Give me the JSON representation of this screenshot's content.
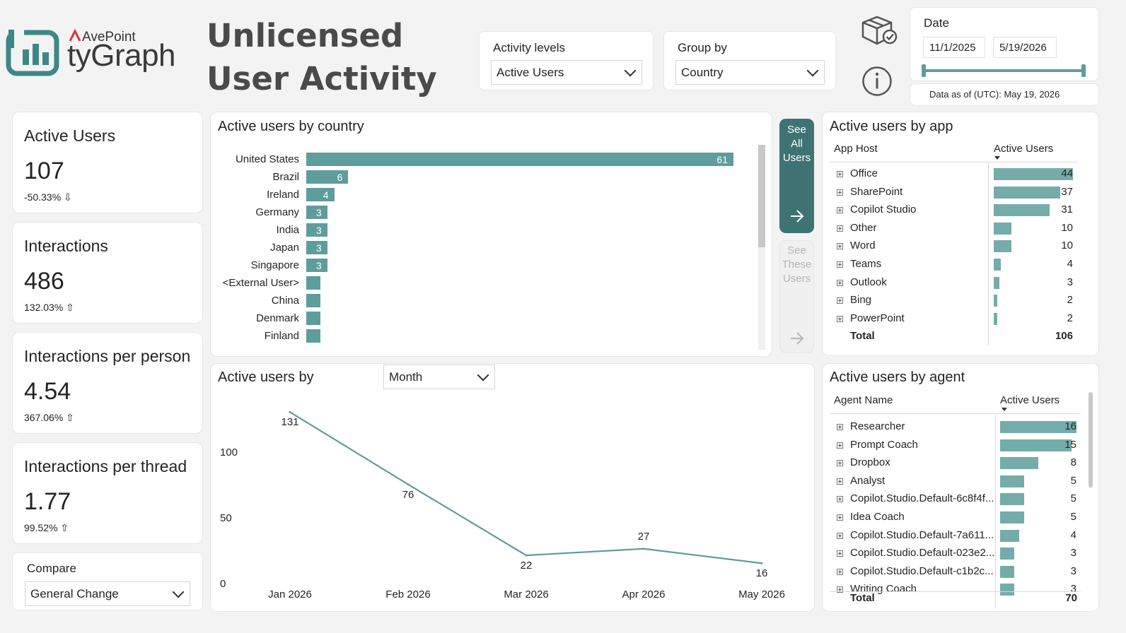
{
  "header": {
    "brand_top": "AvePoint",
    "brand_main": "tyGraph",
    "title": "Unlicensed User Activity"
  },
  "slicers": {
    "activity_levels": {
      "label": "Activity levels",
      "value": "Active Users"
    },
    "group_by": {
      "label": "Group by",
      "value": "Country"
    },
    "date": {
      "label": "Date",
      "start": "11/1/2025",
      "end": "5/19/2026"
    },
    "data_as_of": "Data as of (UTC): May 19, 2026"
  },
  "kpis": [
    {
      "title": "Active Users",
      "value": "107",
      "delta": "-50.33% ⇩"
    },
    {
      "title": "Interactions",
      "value": "486",
      "delta": "132.03% ⇧"
    },
    {
      "title": "Interactions per person",
      "value": "4.54",
      "delta": "367.06% ⇧"
    },
    {
      "title": "Interactions per thread",
      "value": "1.77",
      "delta": "99.52% ⇧"
    }
  ],
  "compare": {
    "label": "Compare",
    "value": "General Change"
  },
  "country_chart": {
    "title": "Active users by country",
    "rows": [
      {
        "label": "United States",
        "value": 61,
        "shown": "61"
      },
      {
        "label": "Brazil",
        "value": 6,
        "shown": "6"
      },
      {
        "label": "Ireland",
        "value": 4,
        "shown": "4"
      },
      {
        "label": "Germany",
        "value": 3,
        "shown": "3"
      },
      {
        "label": "India",
        "value": 3,
        "shown": "3"
      },
      {
        "label": "Japan",
        "value": 3,
        "shown": "3"
      },
      {
        "label": "Singapore",
        "value": 3,
        "shown": "3"
      },
      {
        "label": "<External User>",
        "value": 2,
        "shown": ""
      },
      {
        "label": "China",
        "value": 2,
        "shown": ""
      },
      {
        "label": "Denmark",
        "value": 2,
        "shown": ""
      },
      {
        "label": "Finland",
        "value": 2,
        "shown": ""
      }
    ]
  },
  "buttons": {
    "see_all_users": "See All Users",
    "see_these_users": "See These Users"
  },
  "app_table": {
    "title": "Active users by app",
    "col1": "App Host",
    "col2": "Active Users",
    "rows": [
      {
        "name": "Office",
        "value": 44
      },
      {
        "name": "SharePoint",
        "value": 37
      },
      {
        "name": "Copilot Studio",
        "value": 31
      },
      {
        "name": "Other",
        "value": 10
      },
      {
        "name": "Word",
        "value": 10
      },
      {
        "name": "Teams",
        "value": 4
      },
      {
        "name": "Outlook",
        "value": 3
      },
      {
        "name": "Bing",
        "value": 2
      },
      {
        "name": "PowerPoint",
        "value": 2
      }
    ],
    "total_label": "Total",
    "total_value": "106"
  },
  "trend_chart": {
    "title": "Active users by",
    "granularity": "Month"
  },
  "agent_table": {
    "title": "Active users by agent",
    "col1": "Agent Name",
    "col2": "Active Users",
    "rows": [
      {
        "name": "Researcher",
        "value": 16
      },
      {
        "name": "Prompt Coach",
        "value": 15
      },
      {
        "name": "Dropbox",
        "value": 8
      },
      {
        "name": "Analyst",
        "value": 5
      },
      {
        "name": "Copilot.Studio.Default-6c8f4f...",
        "value": 5
      },
      {
        "name": "Idea Coach",
        "value": 5
      },
      {
        "name": "Copilot.Studio.Default-7a611...",
        "value": 4
      },
      {
        "name": "Copilot.Studio.Default-023e2...",
        "value": 3
      },
      {
        "name": "Copilot.Studio.Default-c1b2c...",
        "value": 3
      },
      {
        "name": "Writing Coach",
        "value": 3
      }
    ],
    "total_label": "Total",
    "total_value": "70"
  },
  "chart_data": {
    "type": "line",
    "x": [
      "Jan 2026",
      "Feb 2026",
      "Mar 2026",
      "Apr 2026",
      "May 2026"
    ],
    "series": [
      {
        "values": [
          131,
          76,
          22,
          27,
          16
        ]
      }
    ],
    "yticks": [
      0,
      50,
      100
    ],
    "ylim": [
      0,
      140
    ],
    "grid": false,
    "color": "#5f9c9c"
  },
  "colors": {
    "accent": "#5f9c9c",
    "button_dark": "#3f7373",
    "bar_light": "#75acaa",
    "logo_teal": "#3e8785",
    "logo_red": "#d9363e"
  }
}
